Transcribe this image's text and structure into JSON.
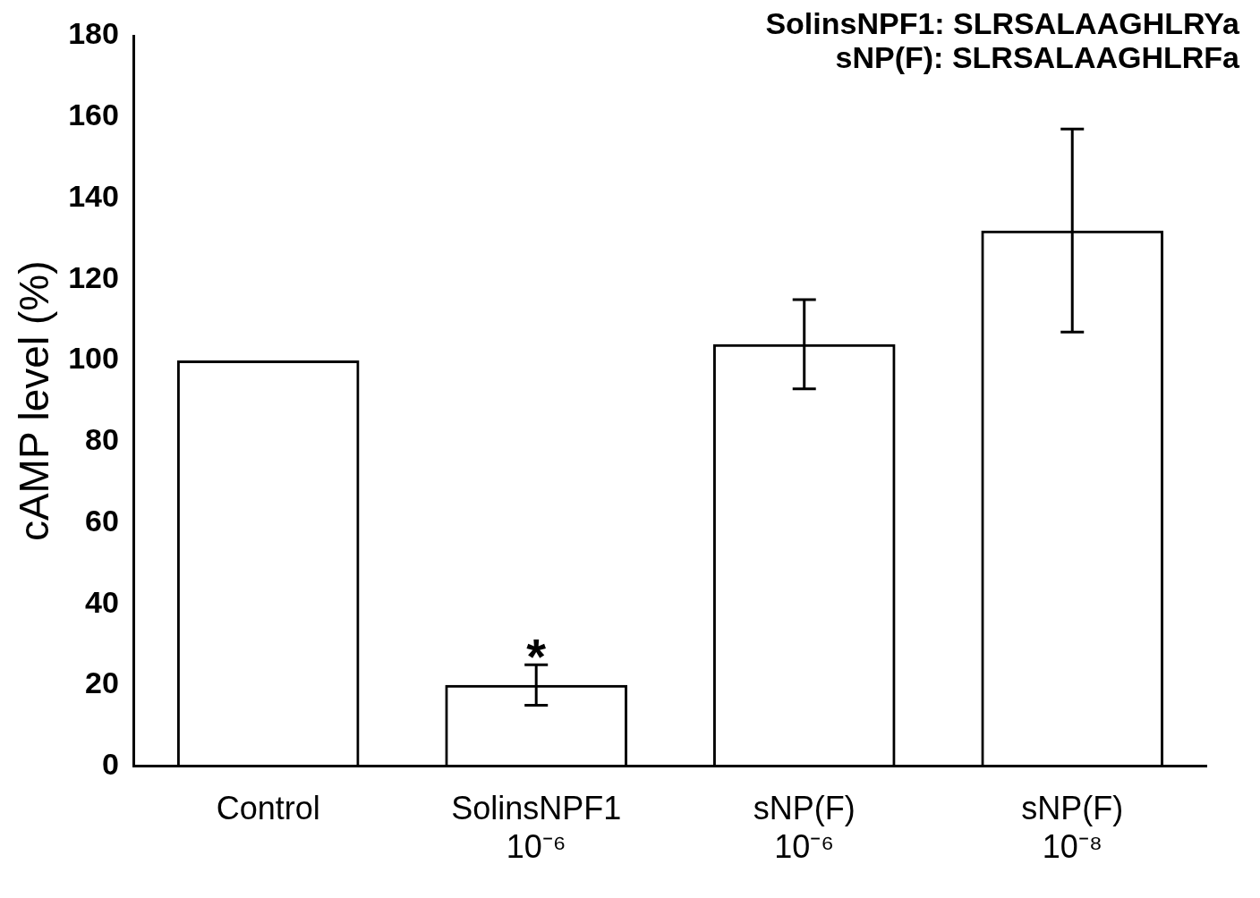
{
  "chart_data": {
    "type": "bar",
    "ylabel": "cAMP level (%)",
    "categories": [
      "Control",
      "SolinsNPF1\n10⁻⁶",
      "sNP(F)\n10⁻⁶",
      "sNP(F)\n10⁻⁸"
    ],
    "values": [
      100,
      20,
      104,
      132
    ],
    "errors": [
      null,
      [
        15,
        25
      ],
      [
        93,
        115
      ],
      [
        107,
        157
      ]
    ],
    "color": "#000000",
    "ylim": [
      0,
      180
    ],
    "yticks": [
      0,
      20,
      40,
      60,
      80,
      100,
      120,
      140,
      160,
      180
    ],
    "annotations": [
      "SolinsNPF1: SLRSALAAGHLRYa",
      "sNP(F): SLRSALAAGHLRFa",
      {
        "text": "*",
        "x": "SolinsNPF1\n10⁻⁶",
        "y": 25
      }
    ]
  }
}
